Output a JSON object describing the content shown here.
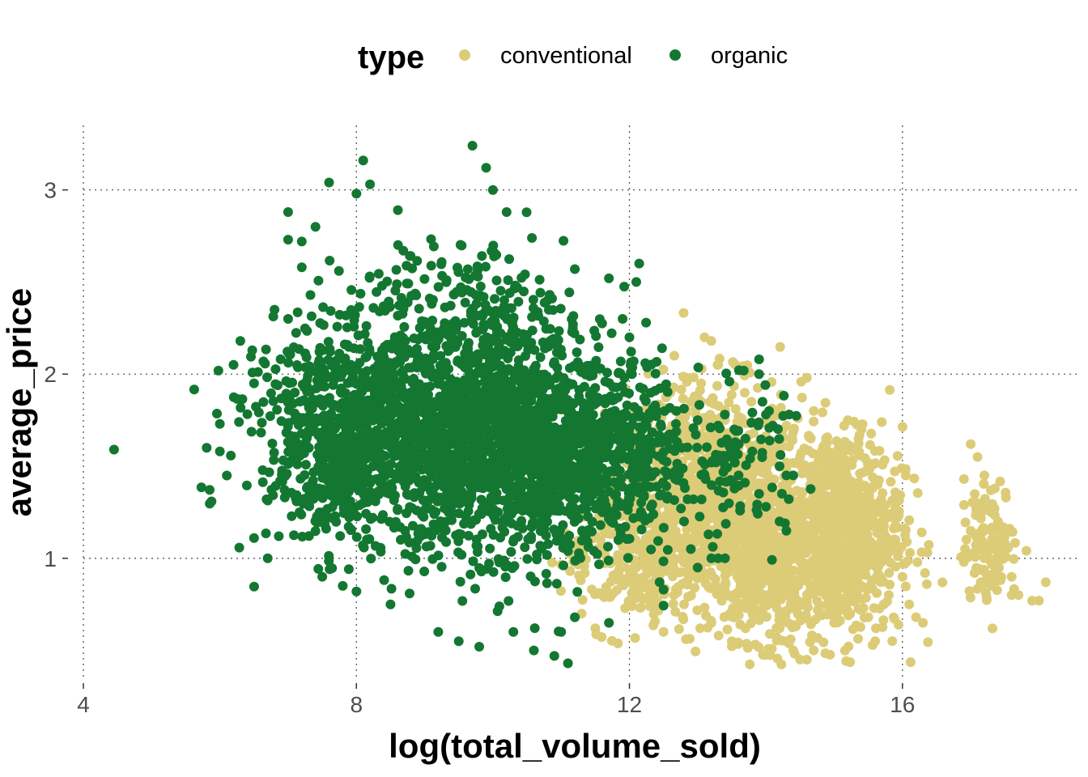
{
  "chart_data": {
    "type": "scatter",
    "xlabel": "log(total_volume_sold)",
    "ylabel": "average_price",
    "xlim": [
      4,
      18.6
    ],
    "ylim": [
      0.34,
      3.35
    ],
    "x_ticks": [
      4,
      8,
      12,
      16
    ],
    "y_ticks": [
      1,
      2,
      3
    ],
    "x_tick_labels": [
      "4",
      "8",
      "12",
      "16"
    ],
    "y_tick_labels": [
      "1",
      "2",
      "3"
    ],
    "grid": "major dotted",
    "legend": {
      "title": "type",
      "placement": "top",
      "entries": [
        "conventional",
        "organic"
      ]
    },
    "colors": {
      "conventional": "#dccc78",
      "organic": "#137731"
    },
    "series": [
      {
        "name": "conventional",
        "color": "#dccc78",
        "points": [
          [
            13.1,
            2.2
          ],
          [
            13.2,
            2.18
          ],
          [
            13.3,
            2.05
          ],
          [
            12.85,
            1.98
          ],
          [
            13.05,
            1.95
          ],
          [
            12.6,
            1.9
          ],
          [
            12.9,
            1.85
          ],
          [
            13.4,
            1.75
          ],
          [
            13.6,
            1.6
          ],
          [
            13.8,
            1.45
          ],
          [
            12.4,
            1.3
          ],
          [
            12.7,
            1.4
          ],
          [
            13.0,
            1.3
          ],
          [
            13.3,
            1.2
          ],
          [
            13.5,
            1.05
          ],
          [
            13.9,
            0.9
          ],
          [
            14.0,
            0.8
          ],
          [
            14.2,
            0.62
          ],
          [
            14.3,
            0.55
          ],
          [
            13.7,
            0.62
          ],
          [
            13.2,
            0.65
          ],
          [
            12.8,
            0.75
          ],
          [
            12.2,
            0.78
          ],
          [
            11.6,
            0.8
          ],
          [
            11.3,
            0.7
          ],
          [
            11.5,
            0.62
          ],
          [
            12.5,
            0.6
          ],
          [
            13.5,
            0.55
          ],
          [
            14.4,
            0.5
          ],
          [
            14.6,
            0.45
          ],
          [
            14.7,
            0.5
          ],
          [
            14.6,
            1.98
          ],
          [
            14.7,
            1.8
          ],
          [
            14.3,
            1.72
          ],
          [
            15.2,
            1.75
          ],
          [
            15.4,
            1.7
          ],
          [
            14.5,
            1.55
          ],
          [
            15.0,
            1.5
          ],
          [
            15.3,
            1.4
          ],
          [
            15.5,
            1.3
          ],
          [
            15.7,
            1.2
          ],
          [
            15.9,
            1.1
          ],
          [
            14.8,
            1.35
          ],
          [
            14.5,
            1.2
          ],
          [
            14.3,
            1.05
          ],
          [
            14.6,
            0.95
          ],
          [
            15.0,
            0.9
          ],
          [
            15.4,
            0.85
          ],
          [
            15.8,
            0.8
          ],
          [
            16.1,
            0.75
          ],
          [
            16.2,
            0.68
          ],
          [
            16.3,
            0.65
          ],
          [
            15.5,
            0.68
          ],
          [
            15.6,
            0.55
          ],
          [
            15.0,
            0.65
          ],
          [
            14.8,
            0.7
          ],
          [
            15.1,
            1.05
          ],
          [
            15.6,
            1.0
          ],
          [
            16.0,
            0.9
          ],
          [
            15.2,
            1.2
          ],
          [
            17.0,
            1.62
          ],
          [
            17.1,
            1.55
          ],
          [
            16.9,
            1.43
          ],
          [
            17.2,
            1.45
          ],
          [
            17.1,
            1.3
          ],
          [
            17.3,
            1.25
          ],
          [
            17.4,
            1.2
          ],
          [
            17.0,
            1.15
          ],
          [
            17.3,
            1.05
          ],
          [
            17.5,
            1.08
          ],
          [
            17.2,
            1.0
          ],
          [
            16.9,
            0.98
          ],
          [
            17.4,
            0.95
          ],
          [
            17.6,
            0.9
          ],
          [
            17.3,
            0.85
          ],
          [
            17.6,
            0.8
          ],
          [
            17.7,
            0.8
          ],
          [
            17.9,
            0.77
          ],
          [
            18.0,
            0.77
          ],
          [
            18.1,
            0.87
          ],
          [
            17.5,
            1.12
          ],
          [
            17.35,
            1.27
          ]
        ]
      },
      {
        "name": "organic",
        "color": "#137731",
        "points": [
          [
            4.45,
            1.59
          ],
          [
            6.5,
            1.11
          ],
          [
            6.0,
            1.73
          ],
          [
            6.0,
            1.58
          ],
          [
            6.2,
            2.05
          ],
          [
            6.3,
            2.18
          ],
          [
            6.5,
            1.95
          ],
          [
            7.0,
            2.88
          ],
          [
            7.0,
            2.73
          ],
          [
            7.2,
            2.72
          ],
          [
            7.4,
            2.8
          ],
          [
            8.1,
            3.16
          ],
          [
            7.6,
            3.04
          ],
          [
            9.7,
            3.24
          ],
          [
            9.9,
            3.12
          ],
          [
            10.2,
            2.88
          ],
          [
            10.0,
            3.0
          ],
          [
            8.2,
            3.03
          ],
          [
            8.0,
            2.98
          ],
          [
            7.2,
            2.58
          ],
          [
            7.0,
            2.3
          ],
          [
            6.8,
            2.35
          ],
          [
            6.7,
            1.0
          ],
          [
            7.5,
            0.9
          ],
          [
            7.8,
            0.85
          ],
          [
            8.0,
            0.82
          ],
          [
            8.5,
            0.75
          ],
          [
            9.2,
            0.6
          ],
          [
            9.5,
            0.55
          ],
          [
            9.8,
            0.52
          ],
          [
            10.3,
            0.6
          ],
          [
            10.6,
            0.5
          ],
          [
            10.9,
            0.47
          ],
          [
            11.1,
            0.43
          ],
          [
            11.0,
            0.6
          ],
          [
            11.7,
            0.65
          ],
          [
            11.2,
            0.68
          ],
          [
            12.5,
            0.83
          ],
          [
            12.8,
            1.2
          ],
          [
            12.9,
            1.05
          ],
          [
            13.0,
            0.95
          ],
          [
            13.4,
            1.0
          ],
          [
            13.3,
            1.0
          ],
          [
            13.2,
            1.0
          ],
          [
            12.1,
            2.5
          ],
          [
            11.7,
            2.52
          ],
          [
            11.2,
            2.57
          ],
          [
            10.8,
            2.4
          ],
          [
            11.9,
            2.3
          ],
          [
            12.0,
            2.2
          ],
          [
            12.2,
            1.92
          ],
          [
            12.4,
            1.8
          ],
          [
            13.0,
            1.75
          ],
          [
            13.3,
            1.72
          ],
          [
            13.7,
            1.65
          ],
          [
            13.9,
            2.08
          ],
          [
            13.9,
            2.0
          ],
          [
            13.95,
            1.85
          ],
          [
            14.0,
            1.78
          ],
          [
            14.1,
            1.72
          ],
          [
            14.2,
            1.5
          ],
          [
            14.3,
            1.45
          ],
          [
            14.4,
            1.45
          ],
          [
            14.0,
            1.28
          ],
          [
            13.9,
            1.35
          ],
          [
            13.6,
            1.45
          ],
          [
            13.2,
            1.52
          ],
          [
            13.5,
            1.55
          ],
          [
            14.3,
            1.15
          ],
          [
            14.2,
            1.2
          ],
          [
            13.8,
            1.58
          ],
          [
            13.6,
            1.62
          ],
          [
            13.4,
            1.5
          ]
        ],
        "dense_clusters": [
          {
            "cx": 9.3,
            "cy": 1.65,
            "sx": 1.25,
            "sy": 0.3,
            "n": 1700
          },
          {
            "cx": 10.9,
            "cy": 1.55,
            "sx": 0.85,
            "sy": 0.28,
            "n": 700
          },
          {
            "cx": 7.8,
            "cy": 1.72,
            "sx": 0.6,
            "sy": 0.25,
            "n": 350
          },
          {
            "cx": 9.5,
            "cy": 2.3,
            "sx": 0.8,
            "sy": 0.25,
            "n": 250
          },
          {
            "cx": 12.1,
            "cy": 1.55,
            "sx": 0.35,
            "sy": 0.2,
            "n": 150
          },
          {
            "cx": 13.5,
            "cy": 1.55,
            "sx": 0.4,
            "sy": 0.2,
            "n": 90
          }
        ]
      }
    ],
    "conventional_dense_clusters": [
      {
        "cx": 13.1,
        "cy": 1.35,
        "sx": 0.7,
        "sy": 0.3,
        "n": 900
      },
      {
        "cx": 14.0,
        "cy": 1.0,
        "sx": 0.45,
        "sy": 0.22,
        "n": 500
      },
      {
        "cx": 15.1,
        "cy": 1.15,
        "sx": 0.45,
        "sy": 0.28,
        "n": 800
      },
      {
        "cx": 12.0,
        "cy": 1.0,
        "sx": 0.5,
        "sy": 0.2,
        "n": 200
      },
      {
        "cx": 17.3,
        "cy": 1.08,
        "sx": 0.2,
        "sy": 0.15,
        "n": 120
      }
    ]
  }
}
